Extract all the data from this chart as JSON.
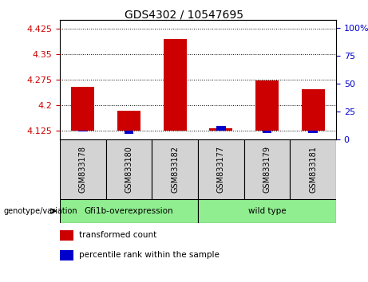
{
  "title": "GDS4302 / 10547695",
  "samples": [
    "GSM833178",
    "GSM833180",
    "GSM833182",
    "GSM833177",
    "GSM833179",
    "GSM833181"
  ],
  "transformed_counts": [
    4.255,
    4.185,
    4.395,
    4.133,
    4.272,
    4.247
  ],
  "percentile_ranks": [
    7,
    5,
    8,
    12,
    6,
    6
  ],
  "bar_base": 4.125,
  "ylim_left": [
    4.1,
    4.45
  ],
  "yticks_left": [
    4.125,
    4.2,
    4.275,
    4.35,
    4.425
  ],
  "yticks_right": [
    0,
    25,
    50,
    75,
    100
  ],
  "ylim_right": [
    0,
    107
  ],
  "red_color": "#cc0000",
  "blue_color": "#0000cc",
  "sample_bg": "#d3d3d3",
  "group1_label": "Gfi1b-overexpression",
  "group2_label": "wild type",
  "group_color": "#90ee90",
  "legend_red_label": "transformed count",
  "legend_blue_label": "percentile rank within the sample",
  "genotype_label": "genotype/variation",
  "title_fontsize": 10,
  "tick_fontsize": 8,
  "label_fontsize": 8
}
